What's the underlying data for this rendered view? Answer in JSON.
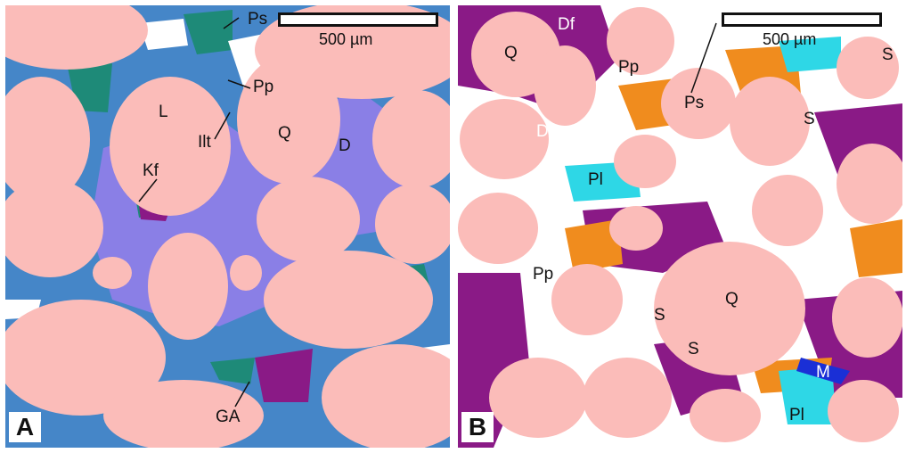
{
  "panels": [
    {
      "letter": "A",
      "scale_label": "500 µm",
      "labels": [
        "Ps",
        "Pp",
        "L",
        "Ilt",
        "Q",
        "D",
        "Kf",
        "GA"
      ]
    },
    {
      "letter": "B",
      "scale_label": "500 µm",
      "labels": [
        "Q",
        "Df",
        "Pp",
        "Ps",
        "S",
        "Df",
        "S",
        "Pl",
        "Pp",
        "S",
        "Q",
        "S",
        "M",
        "Pl"
      ]
    }
  ],
  "colors": {
    "grain": "#fbbcb9",
    "dolomite": "#8a7fe6",
    "ferroan_dolomite": "#8a1a86",
    "siderite": "#f08c1e",
    "illite": "#1e8a78",
    "kaolinite_clay": "#2a6cc8",
    "plagioclase": "#2ed7e6",
    "pore": "#ffffff",
    "muscovite": "#1a2fd6"
  }
}
